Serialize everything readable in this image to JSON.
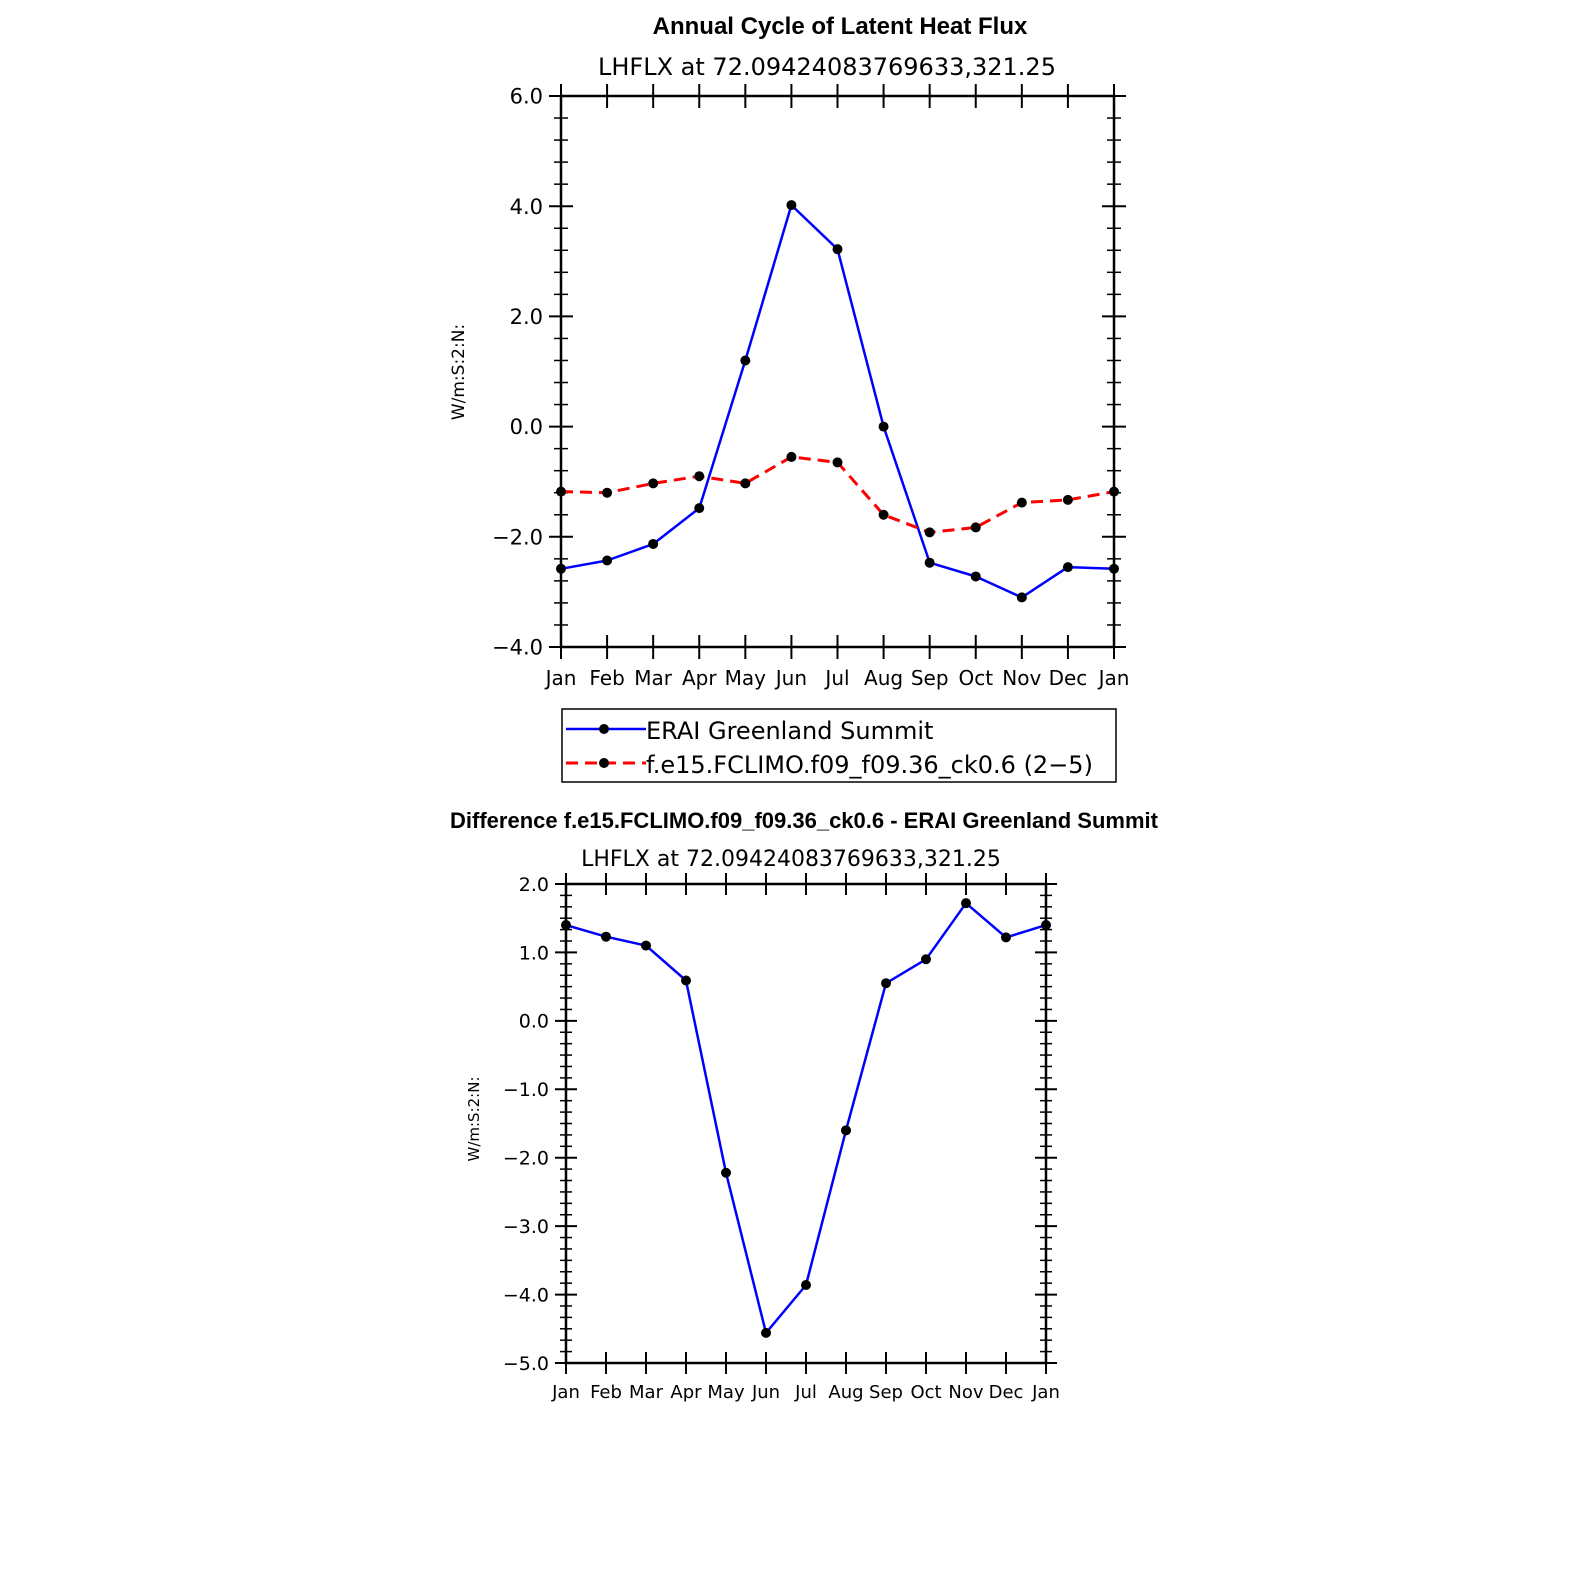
{
  "chart_data": [
    {
      "type": "line",
      "title": "Annual Cycle of Latent Heat Flux",
      "subtitle": "LHFLX at 72.09424083769633,321.25",
      "ylabel": "W/m:S:2:N:",
      "xlabel": "",
      "ylim": [
        -4.0,
        6.0
      ],
      "yticks": [
        -4.0,
        -2.0,
        0.0,
        2.0,
        4.0,
        6.0
      ],
      "ytick_labels": [
        "−4.0",
        "−2.0",
        "0.0",
        "2.0",
        "4.0",
        "6.0"
      ],
      "categories": [
        "Jan",
        "Feb",
        "Mar",
        "Apr",
        "May",
        "Jun",
        "Jul",
        "Aug",
        "Sep",
        "Oct",
        "Nov",
        "Dec",
        "Jan"
      ],
      "legend_position": "below",
      "series": [
        {
          "name": "ERAI Greenland Summit",
          "color": "#0000ff",
          "dash": "solid",
          "values": [
            -2.58,
            -2.43,
            -2.13,
            -1.48,
            1.2,
            4.02,
            3.22,
            0.0,
            -2.47,
            -2.72,
            -3.1,
            -2.55,
            -2.58
          ]
        },
        {
          "name": "f.e15.FCLIMO.f09_f09.36_ck0.6 (2−5)",
          "color": "#ff0000",
          "dash": "dashed",
          "values": [
            -1.18,
            -1.2,
            -1.03,
            -0.9,
            -1.03,
            -0.55,
            -0.65,
            -1.6,
            -1.92,
            -1.83,
            -1.38,
            -1.33,
            -1.18
          ]
        }
      ]
    },
    {
      "type": "line",
      "title": "Difference f.e15.FCLIMO.f09_f09.36_ck0.6 - ERAI Greenland Summit",
      "subtitle": "LHFLX at 72.09424083769633,321.25",
      "ylabel": "W/m:S:2:N:",
      "xlabel": "",
      "ylim": [
        -5.0,
        2.0
      ],
      "yticks": [
        -5.0,
        -4.0,
        -3.0,
        -2.0,
        -1.0,
        0.0,
        1.0,
        2.0
      ],
      "ytick_labels": [
        "−5.0",
        "−4.0",
        "−3.0",
        "−2.0",
        "−1.0",
        "0.0",
        "1.0",
        "2.0"
      ],
      "categories": [
        "Jan",
        "Feb",
        "Mar",
        "Apr",
        "May",
        "Jun",
        "Jul",
        "Aug",
        "Sep",
        "Oct",
        "Nov",
        "Dec",
        "Jan"
      ],
      "series": [
        {
          "name": "Difference",
          "color": "#0000ff",
          "dash": "solid",
          "values": [
            1.4,
            1.23,
            1.1,
            0.59,
            -2.22,
            -4.56,
            -3.86,
            -1.6,
            0.55,
            0.9,
            1.72,
            1.22,
            1.4
          ]
        }
      ]
    }
  ]
}
